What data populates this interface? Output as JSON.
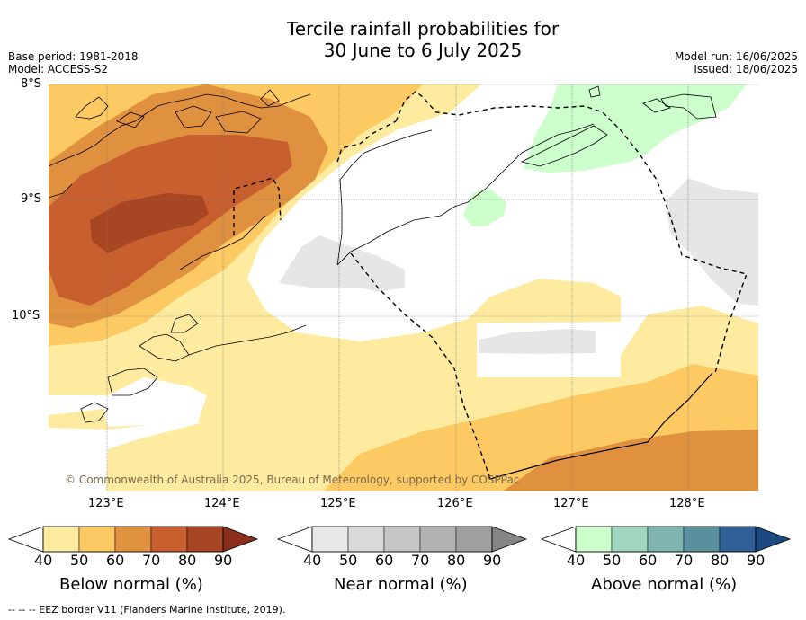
{
  "title_line1": "Tercile rainfall probabilities for",
  "title_line2": "30 June to 6 July 2025",
  "base_period": "Base period: 1981-2018",
  "model": "Model: ACCESS-S2",
  "model_run": "Model run: 16/06/2025",
  "issued": "Issued: 18/06/2025",
  "lat_labels": [
    "8°S",
    "9°S",
    "10°S"
  ],
  "lon_labels": [
    "123°E",
    "124°E",
    "125°E",
    "126°E",
    "127°E",
    "128°E"
  ],
  "copyright": "© Commonwealth of Australia 2025, Bureau of Meteorology, supported by COSPPac",
  "colorbars": [
    {
      "title": "Below normal (%)",
      "ticks": [
        "40",
        "50",
        "60",
        "70",
        "80",
        "90"
      ],
      "colors": [
        "#ffeba0",
        "#fdc963",
        "#e0913f",
        "#c85f2f",
        "#a84624",
        "#8b2f1c"
      ]
    },
    {
      "title": "Near normal (%)",
      "ticks": [
        "40",
        "50",
        "60",
        "70",
        "80",
        "90"
      ],
      "colors": [
        "#e8e8e8",
        "#d9d9d9",
        "#c6c6c6",
        "#b2b2b2",
        "#a0a0a0",
        "#858585"
      ]
    },
    {
      "title": "Above normal (%)",
      "ticks": [
        "40",
        "50",
        "60",
        "70",
        "80",
        "90"
      ],
      "colors": [
        "#ccffcc",
        "#a2d5bf",
        "#80b4b0",
        "#5a8f9e",
        "#2e6096",
        "#1a4a80"
      ]
    }
  ],
  "footer": "--  --  -- EEZ border V11 (Flanders Marine Institute, 2019)."
}
